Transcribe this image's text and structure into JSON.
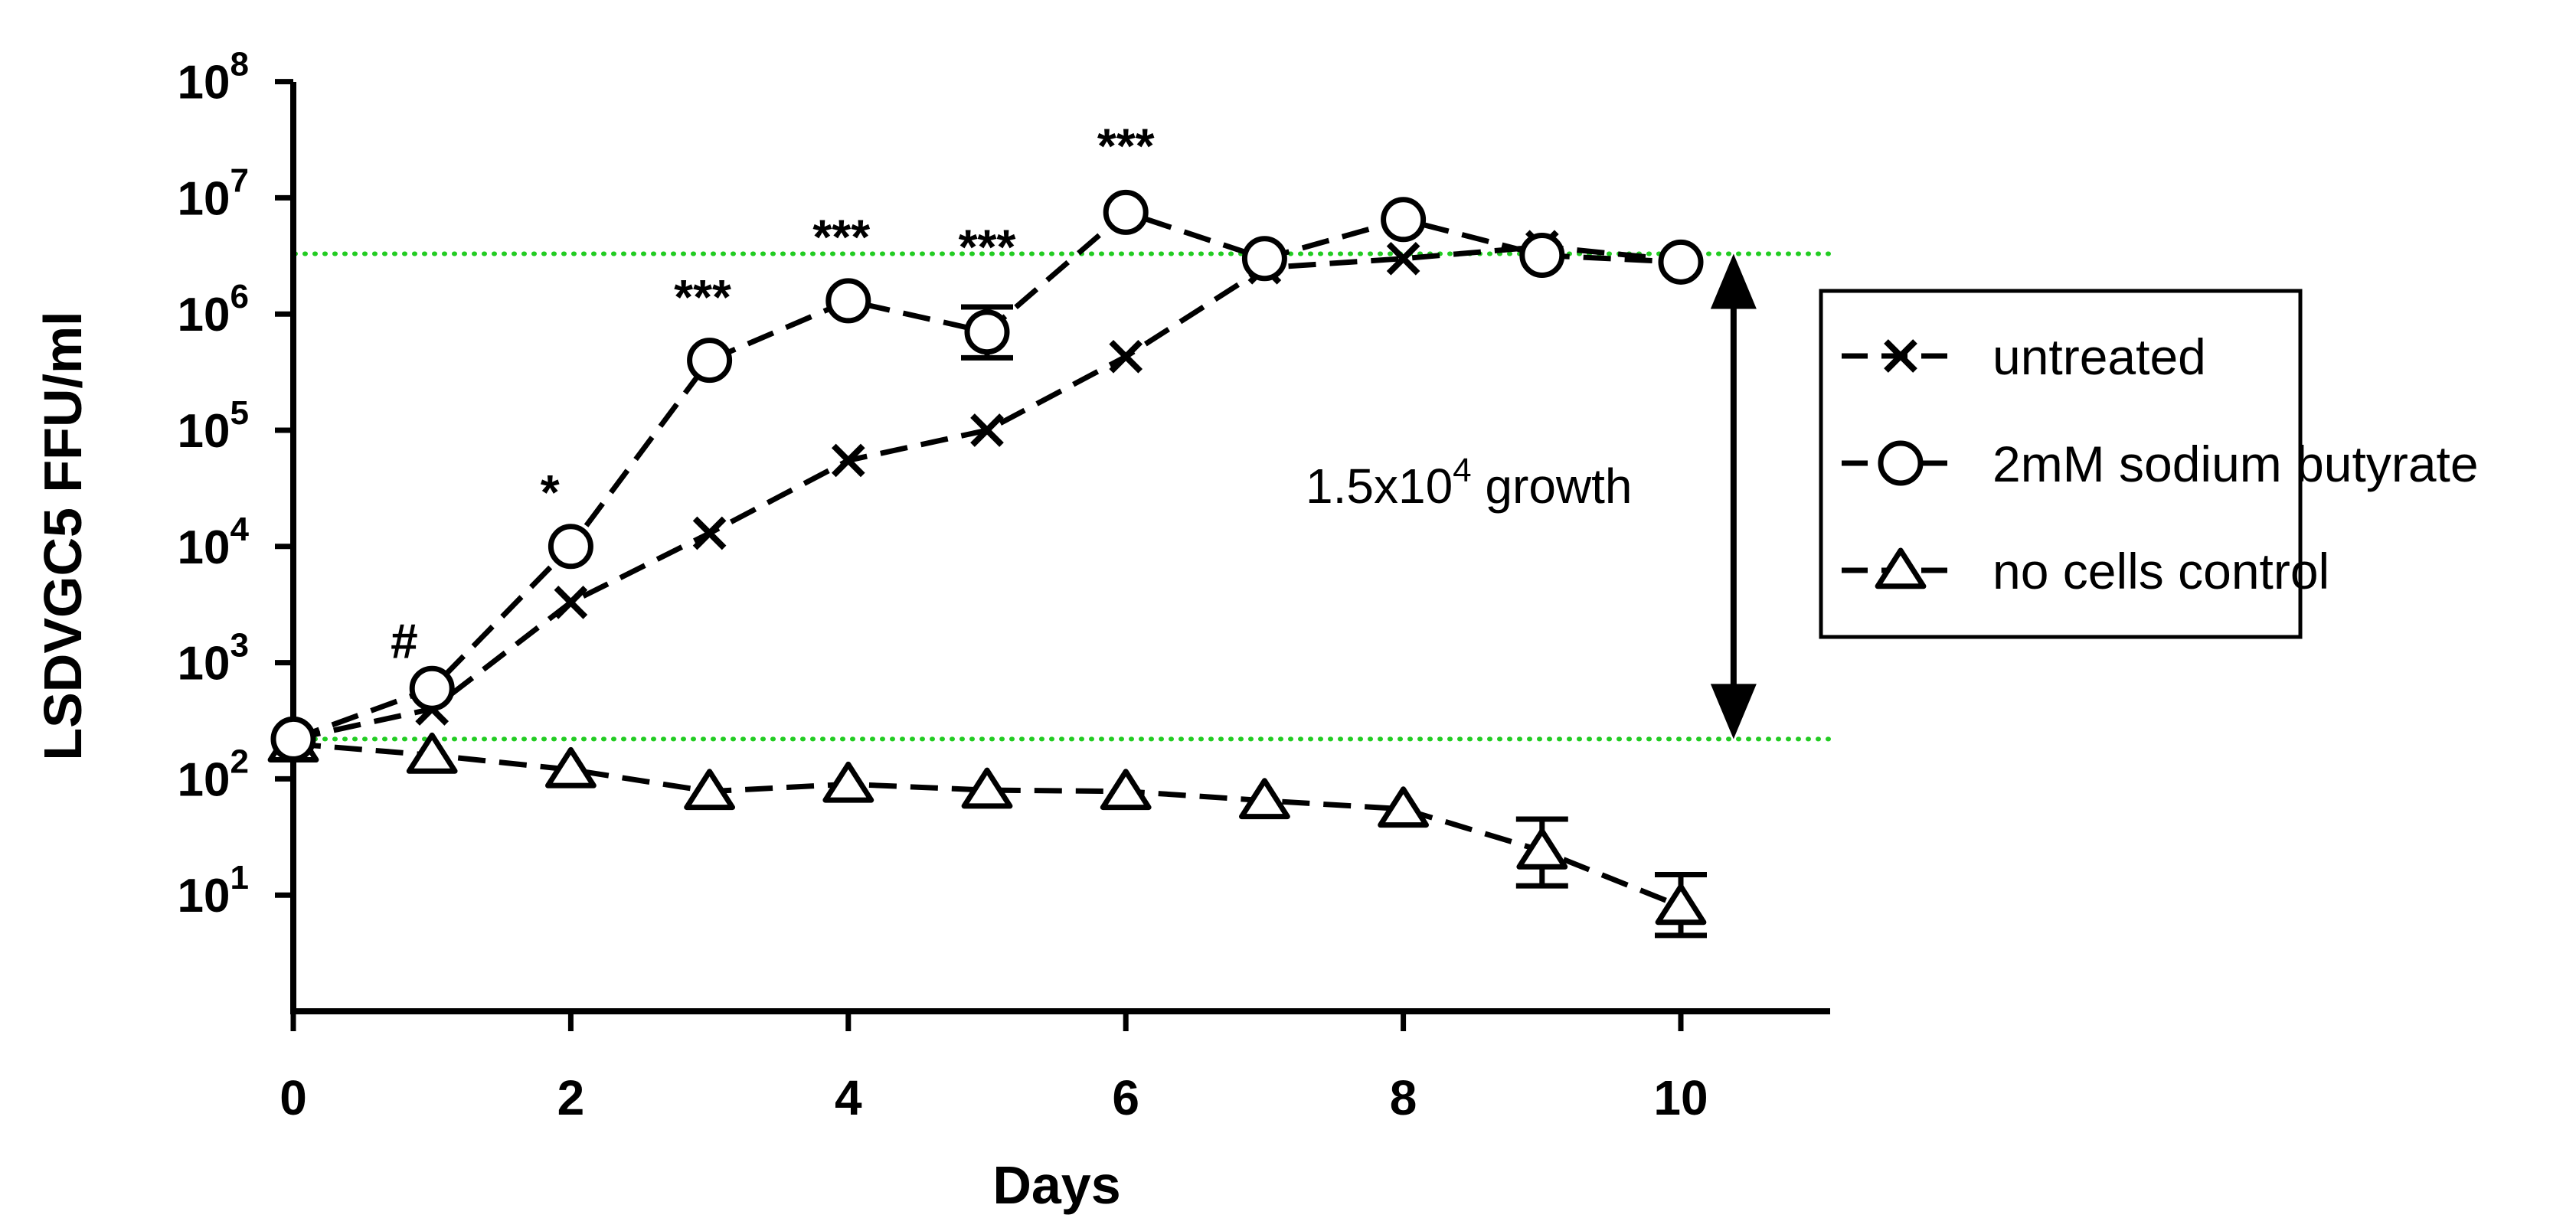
{
  "chart_data": {
    "type": "line",
    "title": "",
    "xlabel": "Days",
    "ylabel": "LSDVGC5 FFU/ml",
    "y_scale": "log",
    "xlim": [
      0,
      11
    ],
    "ylim": [
      1,
      100000000
    ],
    "x_ticks": [
      0,
      2,
      4,
      6,
      8,
      10
    ],
    "x_tick_labels": [
      "0",
      "2",
      "4",
      "6",
      "8",
      "10"
    ],
    "y_ticks": [
      10,
      100,
      1000,
      10000,
      100000,
      1000000,
      10000000,
      100000000
    ],
    "y_tick_labels": [
      {
        "base": "10",
        "exp": "1"
      },
      {
        "base": "10",
        "exp": "2"
      },
      {
        "base": "10",
        "exp": "3"
      },
      {
        "base": "10",
        "exp": "4"
      },
      {
        "base": "10",
        "exp": "5"
      },
      {
        "base": "10",
        "exp": "6"
      },
      {
        "base": "10",
        "exp": "7"
      },
      {
        "base": "10",
        "exp": "8"
      }
    ],
    "x": [
      0,
      1,
      2,
      3,
      4,
      5,
      6,
      7,
      8,
      9,
      10
    ],
    "series": [
      {
        "name": "untreated",
        "marker": "x",
        "values": [
          220,
          400,
          3300,
          13000,
          55000,
          100000,
          430000,
          2500000,
          3000000,
          3800000,
          2900000
        ],
        "err_low": null,
        "err_high": null
      },
      {
        "name": "2mM sodium butyrate",
        "marker": "circle",
        "values": [
          220,
          600,
          10000,
          400000,
          1300000,
          700000,
          7500000,
          3000000,
          6500000,
          3200000,
          2800000
        ],
        "err_low": [
          null,
          null,
          null,
          null,
          null,
          420000,
          null,
          null,
          null,
          null,
          null
        ],
        "err_high": [
          null,
          null,
          null,
          null,
          null,
          1150000,
          null,
          null,
          null,
          null,
          null
        ]
      },
      {
        "name": "no cells control",
        "marker": "triangle",
        "values": [
          200,
          160,
          120,
          78,
          90,
          80,
          78,
          65,
          55,
          24,
          8
        ],
        "err_low": [
          null,
          null,
          null,
          null,
          null,
          null,
          null,
          null,
          null,
          12,
          4.5
        ],
        "err_high": [
          null,
          null,
          null,
          null,
          null,
          null,
          null,
          null,
          null,
          45,
          15
        ]
      }
    ],
    "reference_lines": [
      {
        "y": 3300000,
        "color": "#22cc22",
        "style": "dotted"
      },
      {
        "y": 220,
        "color": "#22cc22",
        "style": "dotted"
      }
    ],
    "annotations": [
      {
        "text": "#",
        "x": 0.8,
        "y": 1100
      },
      {
        "text": "*",
        "x": 1.85,
        "y": 21000
      },
      {
        "text": "***",
        "x": 2.95,
        "y": 1000000
      },
      {
        "text": "***",
        "x": 3.95,
        "y": 3300000
      },
      {
        "text": "***",
        "x": 5.0,
        "y": 2700000
      },
      {
        "text": "***",
        "x": 6.0,
        "y": 20000000
      }
    ],
    "growth_arrow": {
      "x": 10.38,
      "y_top": 3300000,
      "y_bottom": 220,
      "label_base": "1.5x10",
      "label_exp": "4",
      "label_suffix": " growth"
    },
    "legend_position": "right",
    "colors": {
      "lines": "#000000",
      "reference": "#22cc22"
    }
  }
}
